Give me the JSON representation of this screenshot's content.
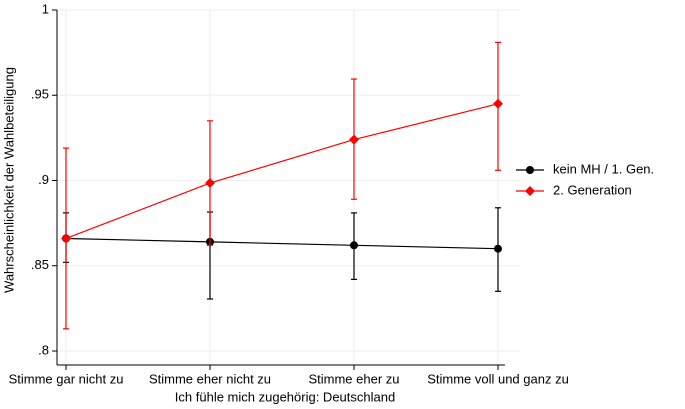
{
  "chart_data": {
    "type": "line",
    "x_label": "Ich fühle mich zugehörig: Deutschland",
    "y_label": "Wahrscheinlichkeit der Wahlbeteiligung",
    "categories": [
      "Stimme gar nicht zu",
      "Stimme eher nicht zu",
      "Stimme eher zu",
      "Stimme voll und ganz zu"
    ],
    "series": [
      {
        "name": "kein MH / 1. Gen.",
        "color": "#000000",
        "marker": "circle",
        "values": [
          0.866,
          0.864,
          0.862,
          0.86
        ],
        "low": [
          0.852,
          0.8305,
          0.842,
          0.835
        ],
        "high": [
          0.881,
          0.8815,
          0.881,
          0.884
        ]
      },
      {
        "name": "2. Generation",
        "color": "#ff0000",
        "marker": "diamond",
        "values": [
          0.866,
          0.8985,
          0.924,
          0.945
        ],
        "low": [
          0.813,
          0.862,
          0.889,
          0.906
        ],
        "high": [
          0.919,
          0.935,
          0.9595,
          0.981
        ]
      }
    ],
    "ylim": [
      0.8,
      1
    ],
    "yticks": [
      {
        "value": 0.8,
        "label": ".8"
      },
      {
        "value": 0.85,
        "label": ".85"
      },
      {
        "value": 0.9,
        "label": ".9"
      },
      {
        "value": 0.95,
        "label": ".95"
      },
      1
    ],
    "grid": true,
    "legend": "right"
  }
}
